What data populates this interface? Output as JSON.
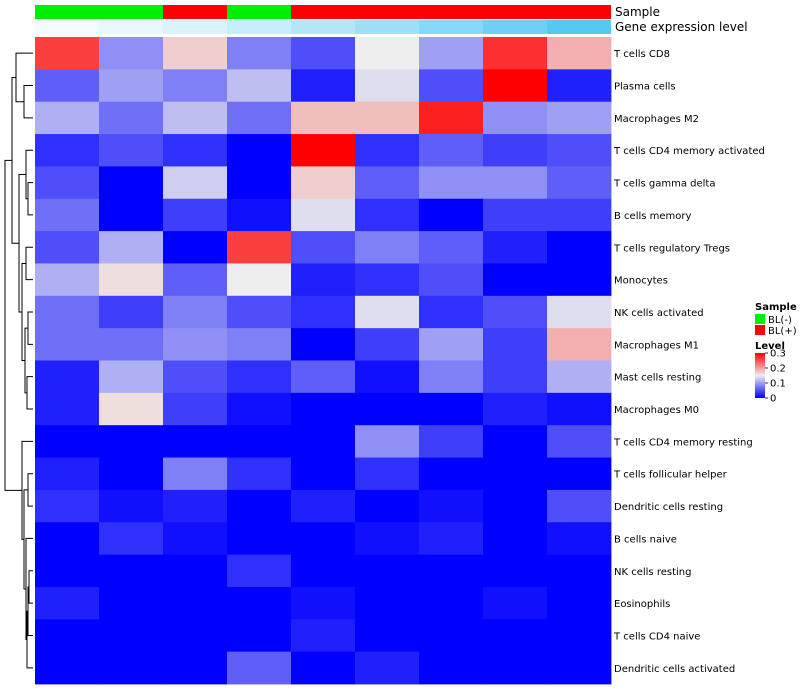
{
  "chart_data": {
    "type": "heatmap",
    "annotation_tracks": [
      {
        "name": "Sample",
        "values": [
          "BL(-)",
          "BL(-)",
          "BL(+)",
          "BL(-)",
          "BL(+)",
          "BL(+)",
          "BL(+)",
          "BL(+)",
          "BL(+)"
        ]
      },
      {
        "name": "Gene expression level",
        "values": [
          0.95,
          0.9,
          0.85,
          0.78,
          0.7,
          0.6,
          0.5,
          0.4,
          0.3
        ]
      }
    ],
    "rows": [
      "T cells CD8",
      "Plasma cells",
      "Macrophages M2",
      "T cells CD4 memory activated",
      "T cells gamma delta",
      "B cells memory",
      "T cells regulatory  Tregs",
      "Monocytes",
      "NK cells activated",
      "Macrophages M1",
      "Mast cells resting",
      "Macrophages M0",
      "T cells CD4 memory resting",
      "T cells follicular helper",
      "Dendritic cells resting",
      "B cells naive",
      "NK cells resting",
      "Eosinophils",
      "T cells CD4 naive",
      "Dendritic cells activated"
    ],
    "n_columns": 9,
    "values": [
      [
        0.26,
        0.09,
        0.17,
        0.08,
        0.05,
        0.15,
        0.1,
        0.27,
        0.19
      ],
      [
        0.06,
        0.1,
        0.08,
        0.12,
        0.02,
        0.14,
        0.05,
        0.3,
        0.02
      ],
      [
        0.11,
        0.07,
        0.12,
        0.07,
        0.18,
        0.18,
        0.28,
        0.09,
        0.1
      ],
      [
        0.03,
        0.05,
        0.03,
        0.0,
        0.3,
        0.03,
        0.06,
        0.04,
        0.05
      ],
      [
        0.05,
        0.0,
        0.13,
        0.0,
        0.17,
        0.06,
        0.09,
        0.09,
        0.06
      ],
      [
        0.07,
        0.0,
        0.04,
        0.01,
        0.14,
        0.03,
        0.0,
        0.04,
        0.04
      ],
      [
        0.05,
        0.11,
        0.0,
        0.26,
        0.05,
        0.08,
        0.06,
        0.02,
        0.0
      ],
      [
        0.11,
        0.16,
        0.06,
        0.15,
        0.02,
        0.03,
        0.05,
        0.0,
        0.0
      ],
      [
        0.07,
        0.04,
        0.08,
        0.05,
        0.03,
        0.14,
        0.03,
        0.05,
        0.14
      ],
      [
        0.07,
        0.07,
        0.09,
        0.08,
        0.0,
        0.04,
        0.1,
        0.04,
        0.19
      ],
      [
        0.02,
        0.11,
        0.05,
        0.03,
        0.06,
        0.01,
        0.08,
        0.04,
        0.11
      ],
      [
        0.02,
        0.16,
        0.04,
        0.01,
        0.0,
        0.0,
        0.0,
        0.02,
        0.01
      ],
      [
        0.0,
        0.0,
        0.0,
        0.0,
        0.0,
        0.09,
        0.04,
        0.0,
        0.05
      ],
      [
        0.02,
        0.0,
        0.08,
        0.03,
        0.0,
        0.03,
        0.0,
        0.0,
        0.0
      ],
      [
        0.03,
        0.01,
        0.02,
        0.0,
        0.02,
        0.0,
        0.01,
        0.0,
        0.05
      ],
      [
        0.0,
        0.03,
        0.01,
        0.0,
        0.0,
        0.01,
        0.02,
        0.0,
        0.01
      ],
      [
        0.0,
        0.0,
        0.0,
        0.03,
        0.0,
        0.0,
        0.0,
        0.0,
        0.0
      ],
      [
        0.02,
        0.0,
        0.0,
        0.0,
        0.01,
        0.0,
        0.0,
        0.01,
        0.0
      ],
      [
        0.0,
        0.0,
        0.0,
        0.0,
        0.02,
        0.0,
        0.0,
        0.0,
        0.0
      ],
      [
        0.0,
        0.0,
        0.0,
        0.06,
        0.0,
        0.02,
        0.0,
        0.0,
        0.0
      ]
    ],
    "dendrogram": "hierarchical clustering of rows",
    "legend": {
      "sample": {
        "title": "Sample",
        "entries": [
          "BL(-)",
          "BL(+)"
        ]
      },
      "level": {
        "title": "Level",
        "ticks": [
          "0.3",
          "0.2",
          "0.1",
          "0"
        ],
        "range": [
          0,
          0.3
        ]
      }
    },
    "colors": {
      "low": "#0000ff",
      "mid": "#eeeeee",
      "high": "#ff0000",
      "sample": {
        "BL(-)": "#00ee00",
        "BL(+)": "#ff0000"
      },
      "gene_level_low": "#56c8f2",
      "gene_level_high": "#f2fbfe"
    }
  }
}
